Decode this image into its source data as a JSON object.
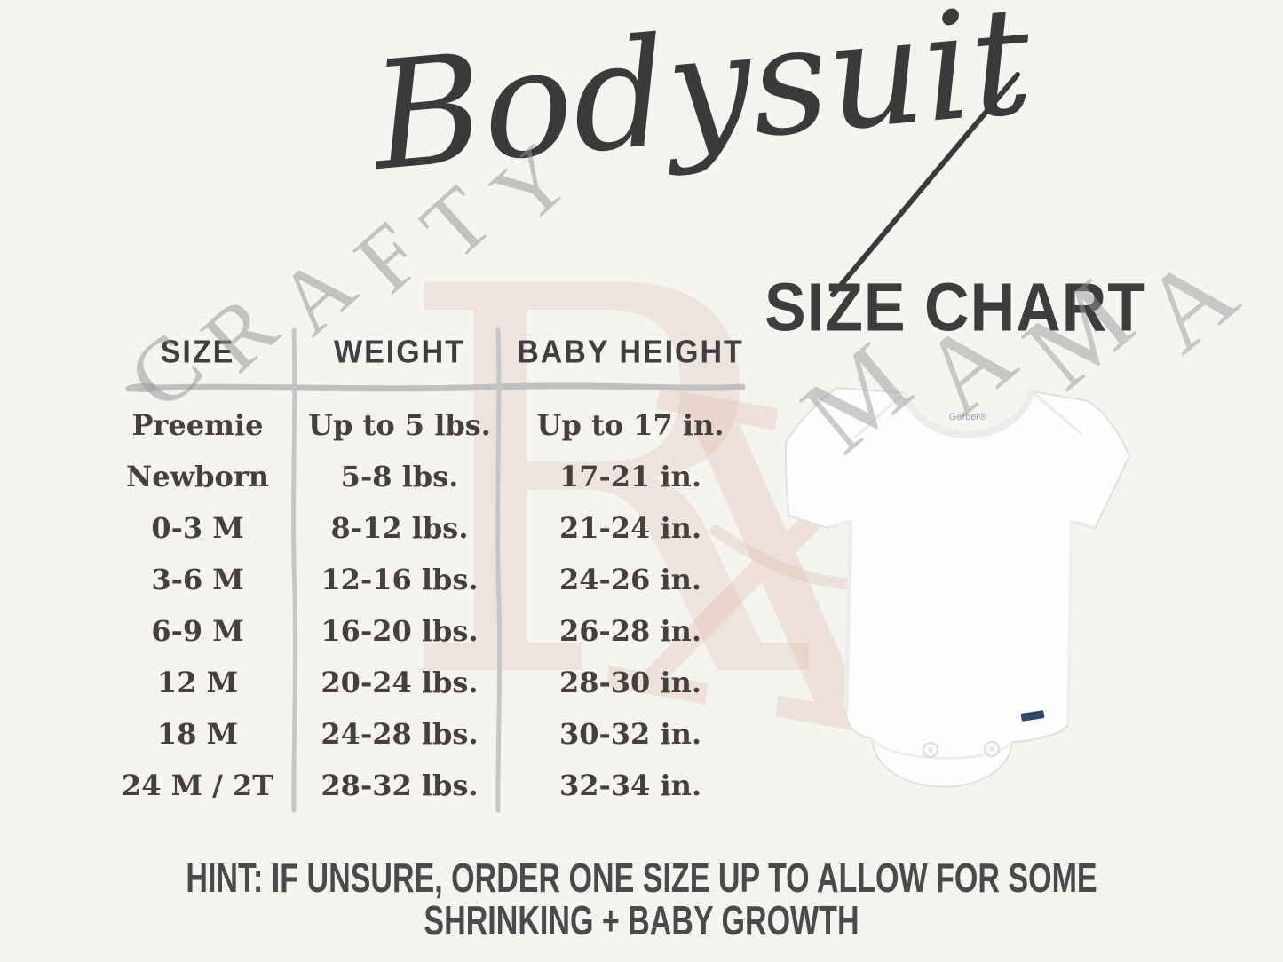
{
  "title": {
    "script": "Bodysuit",
    "subtitle": "SIZE CHART"
  },
  "table": {
    "headers": [
      "SIZE",
      "WEIGHT",
      "BABY HEIGHT"
    ],
    "rows": [
      [
        "Preemie",
        "Up to 5 lbs.",
        "Up to 17 in."
      ],
      [
        "Newborn",
        "5-8 lbs.",
        "17-21 in."
      ],
      [
        "0-3 M",
        "8-12 lbs.",
        "21-24 in."
      ],
      [
        "3-6 M",
        "12-16 lbs.",
        "24-26 in."
      ],
      [
        "6-9 M",
        "16-20 lbs.",
        "26-28 in."
      ],
      [
        "12 M",
        "20-24 lbs.",
        "28-30 in."
      ],
      [
        "18 M",
        "24-28 lbs.",
        "30-32 in."
      ],
      [
        "24 M / 2T",
        "28-32 lbs.",
        "32-34 in."
      ]
    ]
  },
  "hint": {
    "line1": "HINT: IF UNSURE, ORDER ONE SIZE UP TO ALLOW FOR SOME",
    "line2": "SHRINKING + BABY GROWTH"
  },
  "product": {
    "brand_label": "Gerber®"
  },
  "watermark": {
    "word_left": "CRAFTY",
    "word_right": "MAMA",
    "monogram": "RX",
    "gray_color": "#949494",
    "pink_color": "#debcb1"
  },
  "colors": {
    "background": "#f5f4f1",
    "heading_text": "#3d3d3d",
    "table_text": "#45403e",
    "divider_gray": "#c2c2c2",
    "hint_text": "#4a4a4a",
    "tag_navy": "#35466b",
    "brand_label_blue": "#93a0b6"
  }
}
